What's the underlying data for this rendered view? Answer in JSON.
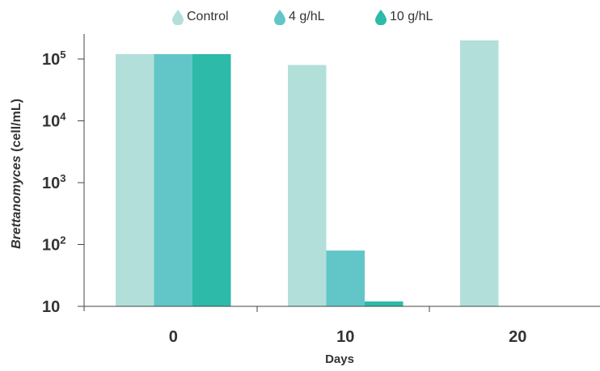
{
  "chart_data": {
    "type": "bar",
    "title": "",
    "xlabel": "Days",
    "ylabel_italic": "Brettanomyces",
    "ylabel_rest": " (cell/mL)",
    "y_scale": "log",
    "ylim": [
      10,
      200000
    ],
    "categories": [
      "0",
      "10",
      "20"
    ],
    "y_ticks": [
      {
        "value": 10,
        "base": "10",
        "exp": ""
      },
      {
        "value": 100,
        "base": "10",
        "exp": "2"
      },
      {
        "value": 1000,
        "base": "10",
        "exp": "3"
      },
      {
        "value": 10000,
        "base": "10",
        "exp": "4"
      },
      {
        "value": 100000,
        "base": "10",
        "exp": "5"
      }
    ],
    "series": [
      {
        "name": "Control",
        "color": "#b2dfda",
        "values": [
          120000,
          80000,
          200000
        ]
      },
      {
        "name": "4 g/hL",
        "color": "#62c6c8",
        "values": [
          120000,
          80,
          null
        ]
      },
      {
        "name": "10 g/hL",
        "color": "#2dbaa8",
        "values": [
          120000,
          12,
          null
        ]
      }
    ],
    "legend_position": "top-center",
    "grid": false
  }
}
